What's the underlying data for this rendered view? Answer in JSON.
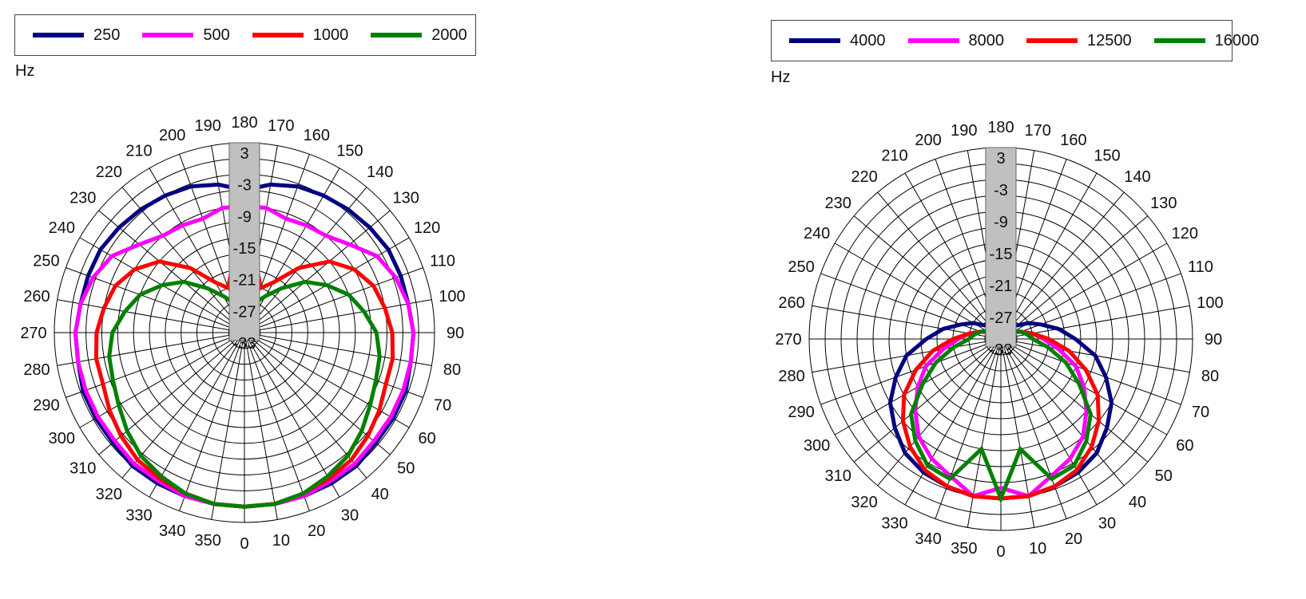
{
  "chart_data": [
    {
      "type": "polar",
      "unit": "Hz",
      "angle_ticks": [
        "0",
        "10",
        "20",
        "30",
        "40",
        "50",
        "60",
        "70",
        "80",
        "90",
        "100",
        "110",
        "120",
        "130",
        "140",
        "150",
        "160",
        "170",
        "180",
        "190",
        "200",
        "210",
        "220",
        "230",
        "240",
        "250",
        "260",
        "270",
        "280",
        "290",
        "300",
        "310",
        "320",
        "330",
        "340",
        "350"
      ],
      "radial_ticks": [
        "3",
        "-3",
        "-9",
        "-15",
        "-21",
        "-27",
        "-33"
      ],
      "rlim": [
        -33,
        3
      ],
      "series": [
        {
          "name": "250",
          "color": "#000080",
          "values": [
            0,
            0,
            0,
            0,
            0,
            -0.5,
            -0.5,
            -0.5,
            -1,
            -1,
            -1.5,
            -1.5,
            -1.5,
            -2,
            -2.5,
            -3,
            -3.5,
            -4.5,
            -6,
            -4.5,
            -3.5,
            -3,
            -2.5,
            -2,
            -1.5,
            -1.5,
            -1.5,
            -1,
            -1,
            -0.5,
            -0.5,
            -0.5,
            0,
            0,
            0,
            0
          ]
        },
        {
          "name": "500",
          "color": "#FF00FF",
          "values": [
            0,
            0,
            0,
            -0.5,
            -0.5,
            -1,
            -1,
            -1,
            -1,
            -1,
            -1.5,
            -2.5,
            -4,
            -7,
            -9,
            -9.5,
            -10,
            -9,
            -9,
            -9,
            -10,
            -9.5,
            -9,
            -7,
            -4,
            -2.5,
            -1.5,
            -1,
            -1,
            -1,
            -1,
            -1,
            -0.5,
            -0.5,
            0,
            0
          ]
        },
        {
          "name": "1000",
          "color": "#FF0000",
          "values": [
            0,
            0,
            -0.5,
            -1,
            -1.5,
            -2.5,
            -3.5,
            -4.5,
            -4.5,
            -5,
            -6,
            -7,
            -9,
            -12,
            -17,
            -22,
            -24,
            -20,
            -17,
            -20,
            -24,
            -22,
            -17,
            -12,
            -9,
            -7,
            -6,
            -5,
            -4.5,
            -4.5,
            -3.5,
            -2.5,
            -1.5,
            -1,
            -0.5,
            0
          ]
        },
        {
          "name": "2000",
          "color": "#008000",
          "values": [
            0,
            0,
            -0.5,
            -1.5,
            -2.5,
            -4,
            -5.5,
            -6.5,
            -7,
            -8,
            -10,
            -12,
            -15,
            -18,
            -22,
            -25,
            -27,
            -26,
            -25,
            -26,
            -27,
            -25,
            -22,
            -18,
            -15,
            -12,
            -10,
            -8,
            -7,
            -6.5,
            -5.5,
            -4,
            -2.5,
            -1.5,
            -0.5,
            0
          ]
        }
      ]
    },
    {
      "type": "polar",
      "unit": "Hz",
      "angle_ticks": [
        "0",
        "10",
        "20",
        "30",
        "40",
        "50",
        "60",
        "70",
        "80",
        "90",
        "100",
        "110",
        "120",
        "130",
        "140",
        "150",
        "160",
        "170",
        "180",
        "190",
        "200",
        "210",
        "220",
        "230",
        "240",
        "250",
        "260",
        "270",
        "280",
        "290",
        "300",
        "310",
        "320",
        "330",
        "340",
        "350"
      ],
      "radial_ticks": [
        "3",
        "-3",
        "-9",
        "-15",
        "-21",
        "-27",
        "-33"
      ],
      "rlim": [
        -33,
        3
      ],
      "series": [
        {
          "name": "4000",
          "color": "#000080",
          "values": [
            -3,
            -3,
            -3.5,
            -4,
            -5,
            -7,
            -9,
            -12,
            -15,
            -19,
            -22,
            -25,
            -27,
            -29,
            -29,
            -28,
            -26,
            -29,
            -31,
            -29,
            -26,
            -28,
            -29,
            -29,
            -27,
            -25,
            -22,
            -19,
            -15,
            -12,
            -9,
            -7,
            -5,
            -4,
            -3.5,
            -3
          ]
        },
        {
          "name": "8000",
          "color": "#FF00FF",
          "values": [
            -5,
            -3,
            -5.5,
            -7,
            -9,
            -12,
            -15,
            -18,
            -22,
            -25,
            -27,
            -29,
            -30,
            -31,
            -31.5,
            -32,
            -32,
            -32.5,
            -33,
            -32.5,
            -32,
            -32,
            -31.5,
            -31,
            -30,
            -29,
            -27,
            -25,
            -22,
            -18,
            -15,
            -12,
            -9,
            -7,
            -5.5,
            -3
          ]
        },
        {
          "name": "12500",
          "color": "#FF0000",
          "values": [
            -3,
            -3,
            -3.5,
            -4.5,
            -6.5,
            -9,
            -12,
            -16,
            -20,
            -24,
            -27,
            -29,
            -30.5,
            -31,
            -31.5,
            -32,
            -32.5,
            -33,
            -33,
            -33,
            -32.5,
            -32,
            -31.5,
            -31,
            -30.5,
            -29,
            -27,
            -24,
            -20,
            -16,
            -12,
            -9,
            -6.5,
            -4.5,
            -3.5,
            -3
          ]
        },
        {
          "name": "16000",
          "color": "#008000",
          "values": [
            -3,
            -12,
            -5,
            -5.5,
            -8,
            -11,
            -16,
            -20,
            -24,
            -27,
            -28,
            -29,
            -30,
            -31,
            -31,
            -31.5,
            -32,
            -32.5,
            -33,
            -32.5,
            -32,
            -31.5,
            -31,
            -31,
            -30,
            -29,
            -28,
            -27,
            -24,
            -20,
            -16,
            -11,
            -8,
            -5.5,
            -5,
            -12
          ]
        }
      ]
    }
  ]
}
